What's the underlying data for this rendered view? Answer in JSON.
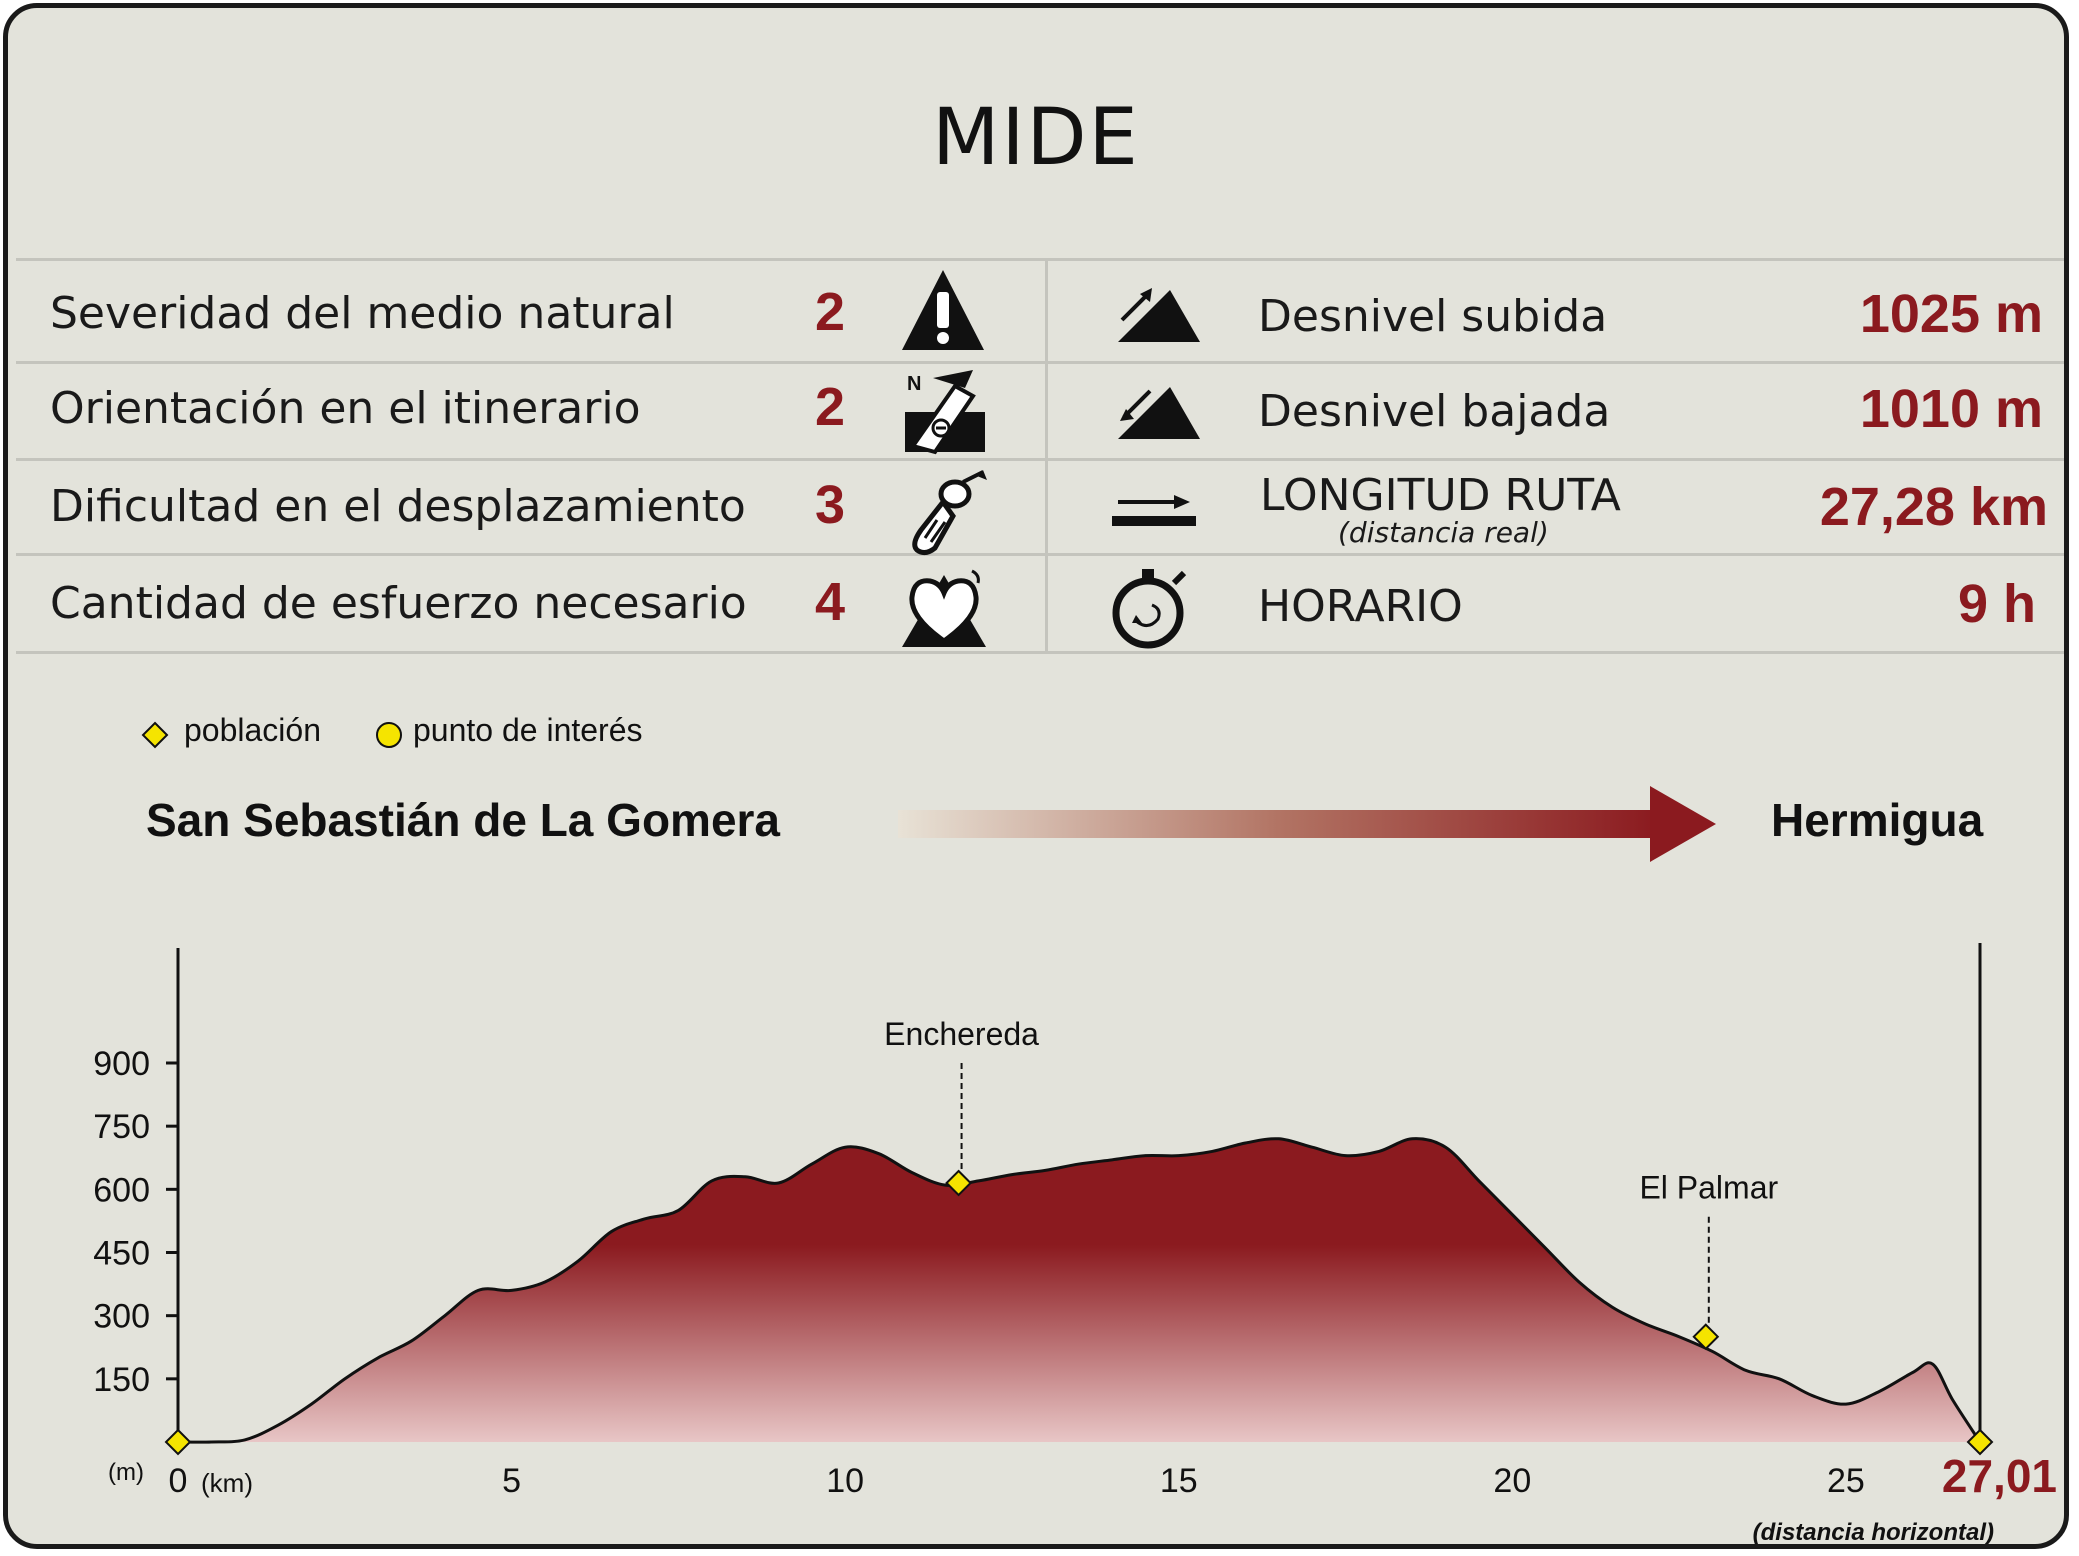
{
  "title": "MIDE",
  "mide": [
    {
      "label": "Severidad del medio natural",
      "value": "2",
      "icon": "warning-icon"
    },
    {
      "label": "Orientación en el itinerario",
      "value": "2",
      "icon": "orientation-icon"
    },
    {
      "label": "Dificultad en el desplazamiento",
      "value": "3",
      "icon": "footprint-icon"
    },
    {
      "label": "Cantidad de esfuerzo necesario",
      "value": "4",
      "icon": "heart-effort-icon"
    }
  ],
  "stats": [
    {
      "label": "Desnivel subida",
      "value": "1025 m",
      "icon": "ascent-icon"
    },
    {
      "label": "Desnivel bajada",
      "value": "1010 m",
      "icon": "descent-icon"
    },
    {
      "label": "LONGITUD RUTA",
      "sublabel": "(distancia real)",
      "value": "27,28 km",
      "icon": "distance-icon"
    },
    {
      "label": "HORARIO",
      "value": "9 h",
      "icon": "stopwatch-icon"
    }
  ],
  "legend": {
    "town_label": "población",
    "poi_label": "punto de interés"
  },
  "route": {
    "start": "San Sebastián de La Gomera",
    "end": "Hermigua"
  },
  "colors": {
    "accent": "#8b1a1f",
    "background": "#e3e3db",
    "marker": "#f5e400"
  },
  "chart_data": {
    "type": "area",
    "x_unit": "(km)",
    "y_unit": "(m)",
    "x_ticks": [
      "0",
      "5",
      "10",
      "15",
      "20",
      "25"
    ],
    "y_ticks": [
      "150",
      "300",
      "450",
      "600",
      "750",
      "900"
    ],
    "xlim": [
      0,
      27.01
    ],
    "ylim": [
      0,
      900
    ],
    "end_distance": "27,01",
    "end_note": "(distancia horizontal)",
    "x": [
      0,
      0.5,
      1.0,
      1.5,
      2.0,
      2.5,
      3.0,
      3.5,
      4.0,
      4.5,
      5.0,
      5.5,
      6.0,
      6.5,
      7.0,
      7.5,
      8.0,
      8.5,
      9.0,
      9.5,
      10.0,
      10.5,
      11.0,
      11.5,
      12.0,
      12.5,
      13.0,
      13.5,
      14.0,
      14.5,
      15.0,
      15.5,
      16.0,
      16.5,
      17.0,
      17.5,
      18.0,
      18.5,
      19.0,
      19.5,
      20.0,
      20.5,
      21.0,
      21.5,
      22.0,
      22.5,
      23.0,
      23.5,
      24.0,
      24.5,
      25.0,
      25.5,
      26.0,
      26.3,
      26.6,
      27.01
    ],
    "y": [
      0,
      0,
      5,
      40,
      90,
      150,
      200,
      240,
      300,
      360,
      360,
      380,
      430,
      500,
      530,
      550,
      620,
      630,
      615,
      660,
      700,
      685,
      640,
      610,
      620,
      635,
      645,
      660,
      670,
      680,
      680,
      690,
      710,
      720,
      700,
      680,
      690,
      720,
      700,
      620,
      540,
      460,
      380,
      320,
      280,
      250,
      215,
      170,
      150,
      110,
      90,
      120,
      165,
      185,
      100,
      0
    ],
    "points": [
      {
        "name": "",
        "x": 0,
        "y": 0,
        "type": "población"
      },
      {
        "name": "Enchereda",
        "x": 11.7,
        "y": 615,
        "type": "población"
      },
      {
        "name": "El Palmar",
        "x": 22.9,
        "y": 250,
        "type": "población"
      },
      {
        "name": "",
        "x": 27.01,
        "y": 0,
        "type": "población"
      }
    ]
  }
}
